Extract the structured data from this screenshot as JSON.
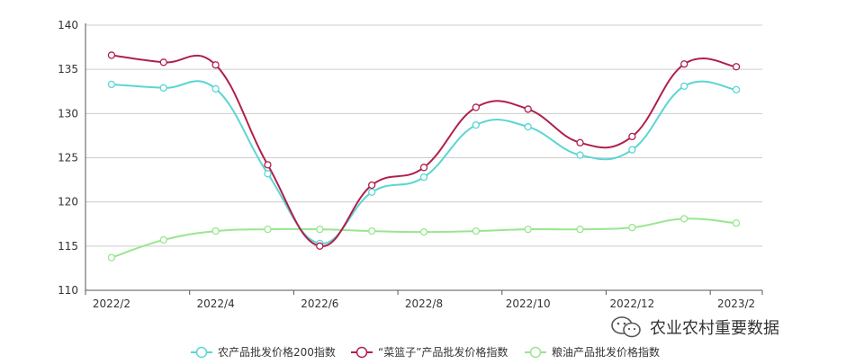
{
  "chart_data": {
    "type": "line",
    "title": "",
    "xlabel": "",
    "ylabel": "",
    "ylim": [
      110,
      140
    ],
    "yticks": [
      110,
      115,
      120,
      125,
      130,
      135,
      140
    ],
    "x": [
      "2022/2",
      "2022/3",
      "2022/4",
      "2022/5",
      "2022/6",
      "2022/7",
      "2022/8",
      "2022/9",
      "2022/10",
      "2022/11",
      "2022/12",
      "2023/1",
      "2023/2"
    ],
    "xtick_labels": [
      "2022/2",
      "2022/4",
      "2022/6",
      "2022/8",
      "2022/10",
      "2022/12",
      "2023/2"
    ],
    "grid": true,
    "legend_position": "bottom",
    "series": [
      {
        "name": "农产品批发价格200指数",
        "color": "#5bd5d5",
        "values": [
          133.3,
          132.9,
          132.8,
          123.2,
          115.3,
          121.1,
          122.8,
          128.7,
          128.5,
          125.3,
          125.9,
          133.1,
          132.7
        ]
      },
      {
        "name": "“菜篮子”产品批发价格指数",
        "color": "#b0204a",
        "values": [
          136.6,
          135.8,
          135.5,
          124.2,
          115.0,
          121.9,
          123.9,
          130.7,
          130.5,
          126.7,
          127.4,
          135.6,
          135.3
        ]
      },
      {
        "name": "粮油产品批发价格指数",
        "color": "#99e58f",
        "values": [
          113.7,
          115.7,
          116.7,
          116.9,
          116.9,
          116.7,
          116.6,
          116.7,
          116.9,
          116.9,
          117.1,
          118.1,
          117.6
        ]
      }
    ]
  },
  "watermark": {
    "text": "农业农村重要数据",
    "icon": "wechat-icon"
  }
}
